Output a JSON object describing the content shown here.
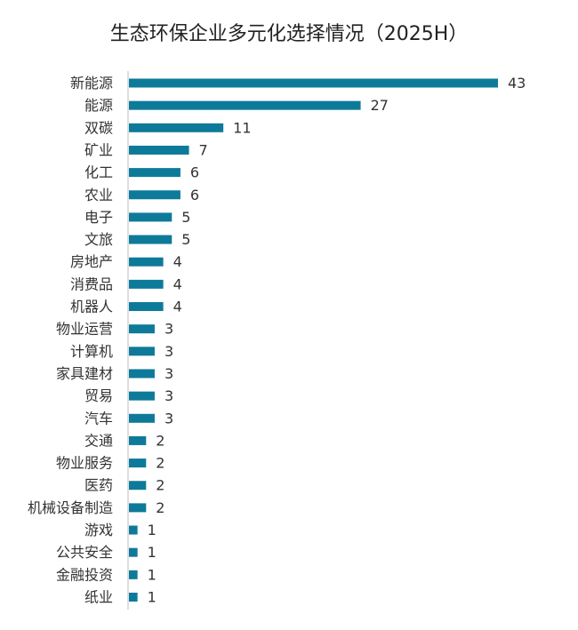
{
  "chart_data": {
    "type": "bar",
    "orientation": "horizontal",
    "title": "生态环保企业多元化选择情况（2025H）",
    "categories": [
      "新能源",
      "能源",
      "双碳",
      "矿业",
      "化工",
      "农业",
      "电子",
      "文旅",
      "房地产",
      "消费品",
      "机器人",
      "物业运营",
      "计算机",
      "家具建材",
      "贸易",
      "汽车",
      "交通",
      "物业服务",
      "医药",
      "机械设备制造",
      "游戏",
      "公共安全",
      "金融投资",
      "纸业"
    ],
    "values": [
      43,
      27,
      11,
      7,
      6,
      6,
      5,
      5,
      4,
      4,
      4,
      3,
      3,
      3,
      3,
      3,
      2,
      2,
      2,
      2,
      1,
      1,
      1,
      1
    ],
    "xlim": [
      0,
      43
    ],
    "grid": false,
    "legend": "none",
    "bar_color": "#0e7a99"
  }
}
